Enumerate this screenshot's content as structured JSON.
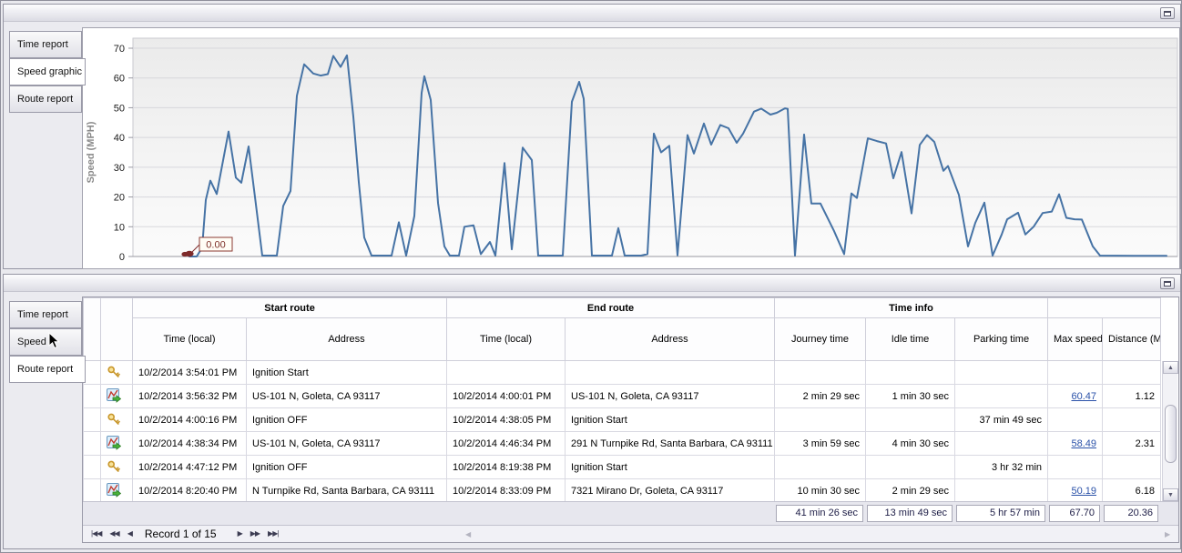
{
  "window": {
    "minimize_button": "window-state-button"
  },
  "colors": {
    "line": "#4673a5",
    "marker": "#7e2a2a",
    "link": "#2a51a8",
    "grid": "#d7d7dc",
    "axis": "#9898a2"
  },
  "top_panel": {
    "tabs": [
      {
        "label": "Time report",
        "selected": false
      },
      {
        "label": "Speed graphic",
        "selected": true
      },
      {
        "label": "Route report",
        "selected": false
      }
    ]
  },
  "chart_data": {
    "type": "line",
    "title": "",
    "xlabel": "",
    "ylabel": "Speed (MPH)",
    "yticks": [
      0,
      10,
      20,
      30,
      40,
      50,
      60,
      70
    ],
    "ylim": [
      0,
      73
    ],
    "grid": "horizontal",
    "legend": "none",
    "x_axis_tick_labels_visible": false,
    "start_annotation": {
      "label": "0.00",
      "x": 62,
      "value": 0
    },
    "series": [
      {
        "name": "Speed (MPH)",
        "x_unit": "plot-relative px (no x labels shown)",
        "points": [
          [
            62,
            0
          ],
          [
            70,
            0
          ],
          [
            76,
            3
          ],
          [
            80,
            19
          ],
          [
            85,
            25.5
          ],
          [
            92,
            21
          ],
          [
            105,
            42
          ],
          [
            113,
            26.5
          ],
          [
            119,
            24.8
          ],
          [
            127,
            37
          ],
          [
            134,
            20
          ],
          [
            142,
            0.3
          ],
          [
            158,
            0.3
          ],
          [
            165,
            17
          ],
          [
            169,
            19.5
          ],
          [
            173,
            22
          ],
          [
            180,
            54
          ],
          [
            188,
            64.6
          ],
          [
            198,
            61.5
          ],
          [
            206,
            60.8
          ],
          [
            214,
            61.3
          ],
          [
            220,
            67.4
          ],
          [
            228,
            63.7
          ],
          [
            235,
            67.6
          ],
          [
            242,
            47
          ],
          [
            248,
            25
          ],
          [
            254,
            6.4
          ],
          [
            262,
            0.3
          ],
          [
            284,
            0.3
          ],
          [
            292,
            11.5
          ],
          [
            300,
            0.3
          ],
          [
            309,
            13.6
          ],
          [
            317,
            55
          ],
          [
            320,
            60.6
          ],
          [
            327,
            52.6
          ],
          [
            335,
            18
          ],
          [
            342,
            3.4
          ],
          [
            348,
            0.3
          ],
          [
            358,
            0.3
          ],
          [
            364,
            10
          ],
          [
            374,
            10.5
          ],
          [
            382,
            0.8
          ],
          [
            392,
            4.9
          ],
          [
            398,
            0.3
          ],
          [
            408,
            31.4
          ],
          [
            416,
            2.4
          ],
          [
            428,
            36.6
          ],
          [
            438,
            32.4
          ],
          [
            445,
            0.3
          ],
          [
            472,
            0.3
          ],
          [
            482,
            52
          ],
          [
            490,
            58.7
          ],
          [
            495,
            53
          ],
          [
            504,
            0.3
          ],
          [
            526,
            0.3
          ],
          [
            533,
            9.5
          ],
          [
            540,
            0.3
          ],
          [
            558,
            0.3
          ],
          [
            565,
            0.8
          ],
          [
            572,
            41.3
          ],
          [
            580,
            35
          ],
          [
            589,
            37.2
          ],
          [
            598,
            0.4
          ],
          [
            609,
            40.8
          ],
          [
            616,
            34.6
          ],
          [
            627,
            44.7
          ],
          [
            635,
            37.6
          ],
          [
            645,
            44.2
          ],
          [
            654,
            43.1
          ],
          [
            663,
            38.2
          ],
          [
            670,
            41.3
          ],
          [
            682,
            48.7
          ],
          [
            690,
            49.7
          ],
          [
            700,
            47.7
          ],
          [
            707,
            48.3
          ],
          [
            716,
            49.8
          ],
          [
            719,
            49.6
          ],
          [
            727,
            0.3
          ],
          [
            737,
            41
          ],
          [
            745,
            17.8
          ],
          [
            755,
            17.8
          ],
          [
            770,
            8.5
          ],
          [
            781,
            0.8
          ],
          [
            789,
            21.2
          ],
          [
            795,
            19.7
          ],
          [
            807,
            39.7
          ],
          [
            817,
            38.8
          ],
          [
            827,
            38
          ],
          [
            835,
            26.3
          ],
          [
            844,
            35.1
          ],
          [
            855,
            14.5
          ],
          [
            864,
            37.5
          ],
          [
            872,
            40.8
          ],
          [
            880,
            38.5
          ],
          [
            890,
            28.8
          ],
          [
            895,
            30.4
          ],
          [
            907,
            20.7
          ],
          [
            917,
            3.4
          ],
          [
            925,
            11.3
          ],
          [
            935,
            18.1
          ],
          [
            944,
            0.3
          ],
          [
            954,
            7.4
          ],
          [
            960,
            12.5
          ],
          [
            972,
            14.7
          ],
          [
            980,
            7.4
          ],
          [
            989,
            10
          ],
          [
            999,
            14.6
          ],
          [
            1009,
            15.1
          ],
          [
            1017,
            20.9
          ],
          [
            1025,
            13
          ],
          [
            1034,
            12.5
          ],
          [
            1042,
            12.4
          ],
          [
            1054,
            3.4
          ],
          [
            1062,
            0.3
          ],
          [
            1100,
            0.2
          ],
          [
            1135,
            0.2
          ]
        ]
      }
    ]
  },
  "bottom_panel": {
    "tabs": [
      {
        "label": "Time report",
        "selected": false
      },
      {
        "label": "Speed graphic",
        "selected": false
      },
      {
        "label": "Route report",
        "selected": true
      }
    ],
    "table": {
      "column_groups": [
        {
          "label": "Start route",
          "span": 2
        },
        {
          "label": "End route",
          "span": 2
        },
        {
          "label": "Time info",
          "span": 3
        },
        {
          "label": "",
          "span": 2
        }
      ],
      "columns": [
        "Time (local)",
        "Address",
        "Time (local)",
        "Address",
        "Journey time",
        "Idle time",
        "Parking time",
        "Max speed (MPH)",
        "Distance (Miles)"
      ],
      "rows": [
        {
          "icon": "key-icon",
          "start_time": "10/2/2014 3:54:01 PM",
          "start_address": "Ignition Start",
          "end_time": "",
          "end_address": "",
          "journey": "",
          "idle": "",
          "parking": "",
          "max_speed": "",
          "max_speed_is_link": false,
          "distance": ""
        },
        {
          "icon": "route-icon",
          "start_time": "10/2/2014 3:56:32 PM",
          "start_address": "US-101 N, Goleta, CA 93117",
          "end_time": "10/2/2014 4:00:01 PM",
          "end_address": "US-101 N, Goleta, CA 93117",
          "journey": "2 min 29 sec",
          "idle": "1 min 30 sec",
          "parking": "",
          "max_speed": "60.47",
          "max_speed_is_link": true,
          "distance": "1.12"
        },
        {
          "icon": "key-icon",
          "start_time": "10/2/2014 4:00:16 PM",
          "start_address": "Ignition OFF",
          "end_time": "10/2/2014 4:38:05 PM",
          "end_address": "Ignition Start",
          "journey": "",
          "idle": "",
          "parking": "37 min 49 sec",
          "max_speed": "",
          "max_speed_is_link": false,
          "distance": ""
        },
        {
          "icon": "route-icon",
          "start_time": "10/2/2014 4:38:34 PM",
          "start_address": "US-101 N, Goleta, CA 93117",
          "end_time": "10/2/2014 4:46:34 PM",
          "end_address": "291 N Turnpike Rd, Santa Barbara, CA 93111",
          "journey": "3 min 59 sec",
          "idle": "4 min 30 sec",
          "parking": "",
          "max_speed": "58.49",
          "max_speed_is_link": true,
          "distance": "2.31"
        },
        {
          "icon": "key-icon",
          "start_time": "10/2/2014 4:47:12 PM",
          "start_address": "Ignition OFF",
          "end_time": "10/2/2014 8:19:38 PM",
          "end_address": "Ignition Start",
          "journey": "",
          "idle": "",
          "parking": "3 hr 32 min",
          "max_speed": "",
          "max_speed_is_link": false,
          "distance": ""
        },
        {
          "icon": "route-icon",
          "start_time": "10/2/2014 8:20:40 PM",
          "start_address": "N Turnpike Rd, Santa Barbara, CA 93111",
          "end_time": "10/2/2014 8:33:09 PM",
          "end_address": "7321 Mirano Dr, Goleta, CA 93117",
          "journey": "10 min 30 sec",
          "idle": "2 min 29 sec",
          "parking": "",
          "max_speed": "50.19",
          "max_speed_is_link": true,
          "distance": "6.18"
        }
      ],
      "summary": {
        "journey": "41 min 26 sec",
        "idle": "13 min 49 sec",
        "parking": "5 hr 57 min",
        "max_speed": "67.70",
        "distance": "20.36"
      },
      "pager": {
        "label": "Record 1 of 15",
        "left_buttons": [
          {
            "name": "first-record-button",
            "glyph": "|◀◀"
          },
          {
            "name": "prev-page-button",
            "glyph": "◀◀"
          },
          {
            "name": "prev-record-button",
            "glyph": "◀"
          }
        ],
        "right_buttons": [
          {
            "name": "next-record-button",
            "glyph": "▶"
          },
          {
            "name": "next-page-button",
            "glyph": "▶▶"
          },
          {
            "name": "last-record-button",
            "glyph": "▶▶|"
          }
        ],
        "hscroll_left_glyph": "◀",
        "hscroll_right_glyph": "▶"
      }
    }
  }
}
